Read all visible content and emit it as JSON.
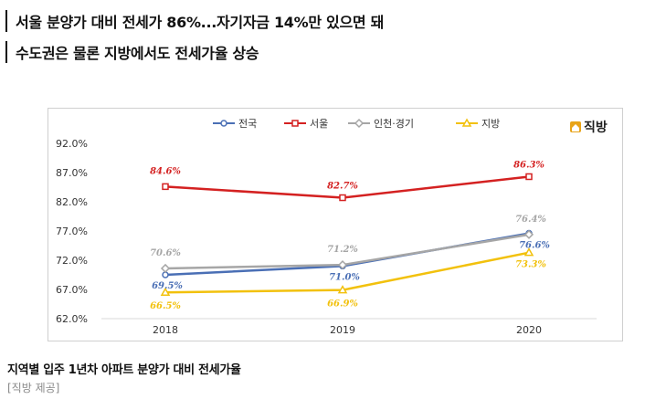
{
  "headline": {
    "line1": "서울 분양가 대비 전세가 86%...자기자금 14%만 있으면 돼",
    "line2": "수도권은 물론 지방에서도 전세가율 상승"
  },
  "logo": {
    "text": "직방",
    "icon": "house-icon",
    "color": "#e8a317"
  },
  "caption": "지역별 입주 1년차 아파트 분양가 대비 전세가율",
  "source": "[직방 제공]",
  "chart_data": {
    "type": "line",
    "categories": [
      "2018",
      "2019",
      "2020"
    ],
    "y_ticks": [
      "92.0%",
      "87.0%",
      "82.0%",
      "77.0%",
      "72.0%",
      "67.0%",
      "62.0%"
    ],
    "ylim": [
      62,
      92
    ],
    "grid": false,
    "legend_position": "top-center",
    "series": [
      {
        "name": "전국",
        "values": [
          69.5,
          71.0,
          76.6
        ],
        "labels": [
          "69.5%",
          "71.0%",
          "76.6%"
        ],
        "color": "#4a6fb5",
        "marker": "circle"
      },
      {
        "name": "서울",
        "values": [
          84.6,
          82.7,
          86.3
        ],
        "labels": [
          "84.6%",
          "82.7%",
          "86.3%"
        ],
        "color": "#d42121",
        "marker": "square"
      },
      {
        "name": "인천·경기",
        "values": [
          70.6,
          71.2,
          76.4
        ],
        "labels": [
          "70.6%",
          "71.2%",
          "76.4%"
        ],
        "color": "#a6a6a6",
        "marker": "diamond"
      },
      {
        "name": "지방",
        "values": [
          66.5,
          66.9,
          73.3
        ],
        "labels": [
          "66.5%",
          "66.9%",
          "73.3%"
        ],
        "color": "#f2c10d",
        "marker": "triangle"
      }
    ]
  }
}
